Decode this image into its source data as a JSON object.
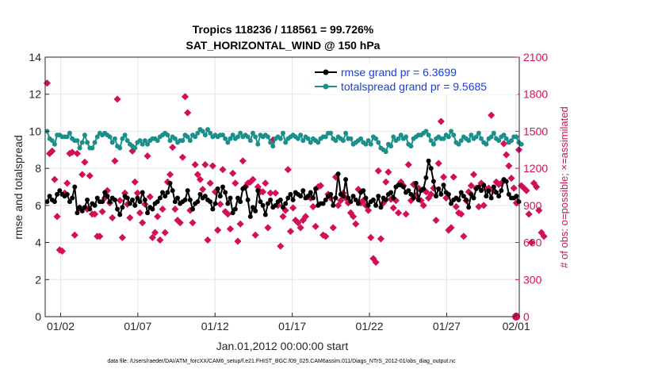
{
  "chart_data": {
    "type": "line",
    "title_line1": "Tropics 118236 / 118561 = 99.726%",
    "title_line2": "SAT_HORIZONTAL_WIND @ 150 hPa",
    "xlabel": "Jan.01,2012 00:00:00 start",
    "ylabel_left": "rmse and totalspread",
    "ylabel_right": "# of obs: o=possible; ×=assimilated",
    "xlim": [
      0.5,
      31.2
    ],
    "ylim_left": [
      0,
      14
    ],
    "ylim_right": [
      0,
      2100
    ],
    "x_ticks": [
      {
        "value": 1.5,
        "label": "01/02"
      },
      {
        "value": 6.5,
        "label": "01/07"
      },
      {
        "value": 11.5,
        "label": "01/12"
      },
      {
        "value": 16.5,
        "label": "01/17"
      },
      {
        "value": 21.5,
        "label": "01/22"
      },
      {
        "value": 26.5,
        "label": "01/27"
      },
      {
        "value": 31.0,
        "label": "02/01"
      }
    ],
    "y_ticks_left": [
      "0",
      "2",
      "4",
      "6",
      "8",
      "10",
      "12",
      "14"
    ],
    "y_ticks_right": [
      "0",
      "300",
      "600",
      "900",
      "1200",
      "1500",
      "1800",
      "2100"
    ],
    "series": [
      {
        "name": "rmse grand pr = 6.3699",
        "color": "#000000",
        "marker": "circle",
        "axis": "left",
        "values": [
          6.2,
          6.5,
          6.3,
          6.2,
          6.6,
          6.8,
          6.6,
          6.5,
          6.6,
          6.2,
          6.4,
          7.0,
          5.6,
          5.9,
          5.7,
          5.9,
          6.3,
          5.8,
          6.1,
          6.0,
          6.4,
          6.2,
          6.2,
          6.7,
          6.5,
          6.2,
          6.4,
          6.3,
          5.8,
          5.5,
          5.9,
          6.5,
          6.4,
          6.1,
          6.3,
          6.0,
          6.4,
          6.2,
          6.7,
          6.3,
          5.6,
          5.9,
          5.8,
          6.1,
          6.2,
          6.4,
          6.7,
          6.5,
          6.7,
          7.2,
          6.8,
          6.2,
          6.4,
          6.1,
          6.2,
          6.3,
          6.8,
          6.3,
          5.8,
          6.1,
          6.2,
          6.6,
          6.4,
          6.5,
          6.3,
          6.2,
          5.8,
          6.1,
          6.9,
          6.5,
          7.0,
          6.7,
          6.1,
          6.4,
          5.6,
          5.8,
          6.4,
          6.2,
          6.9,
          7.0,
          6.3,
          5.4,
          5.9,
          5.7,
          6.8,
          6.2,
          6.0,
          5.5,
          6.1,
          6.3,
          5.9,
          6.0,
          6.2,
          6.3,
          5.9,
          6.1,
          6.4,
          6.6,
          6.3,
          6.7,
          6.6,
          6.5,
          6.8,
          6.4,
          6.5,
          6.7,
          6.4,
          6.9,
          6.0,
          6.1,
          6.1,
          6.3,
          6.5,
          6.6,
          6.0,
          6.4,
          7.7,
          6.6,
          6.5,
          7.4,
          6.4,
          6.2,
          6.5,
          6.3,
          6.1,
          6.7,
          6.8,
          6.4,
          6.0,
          6.2,
          6.3,
          6.0,
          6.5,
          5.9,
          6.4,
          6.3,
          6.6,
          6.7,
          6.4,
          7.0,
          7.1,
          7.1,
          7.0,
          6.7,
          6.8,
          6.6,
          6.4,
          7.2,
          6.3,
          6.8,
          6.9,
          7.5,
          8.4,
          8.0,
          7.3,
          6.5,
          6.9,
          6.6,
          7.1,
          6.7,
          6.6,
          6.1,
          6.3,
          6.4,
          6.3,
          6.7,
          6.5,
          6.3,
          5.9,
          6.6,
          6.4,
          6.9,
          7.0,
          6.8,
          7.1,
          6.5,
          6.8,
          6.4,
          7.0,
          6.7,
          6.5,
          6.8,
          7.4,
          7.3,
          6.6,
          6.4,
          6.4,
          6.5,
          6.2
        ]
      },
      {
        "name": "totalspread grand pr = 9.5685",
        "color": "#1b8f8a",
        "marker": "circle",
        "axis": "left",
        "values": [
          10.0,
          9.6,
          9.5,
          9.3,
          9.8,
          9.8,
          9.7,
          9.7,
          9.7,
          9.9,
          9.6,
          9.5,
          9.5,
          9.1,
          9.4,
          9.8,
          9.4,
          9.1,
          9.1,
          9.4,
          9.7,
          9.9,
          9.8,
          9.9,
          9.8,
          9.7,
          9.4,
          9.6,
          9.2,
          9.1,
          9.6,
          9.8,
          9.5,
          9.3,
          9.2,
          9.1,
          9.4,
          9.5,
          9.3,
          9.5,
          9.3,
          9.5,
          9.6,
          9.6,
          9.5,
          9.7,
          9.8,
          9.9,
          9.8,
          9.5,
          9.7,
          9.6,
          9.4,
          9.5,
          9.5,
          9.8,
          9.7,
          9.5,
          9.8,
          9.7,
          9.9,
          10.1,
          10.0,
          9.8,
          10.1,
          9.9,
          9.7,
          9.8,
          9.7,
          9.8,
          9.8,
          9.6,
          9.4,
          9.6,
          9.8,
          9.6,
          9.7,
          9.9,
          9.7,
          9.8,
          9.7,
          9.5,
          9.9,
          9.7,
          9.3,
          9.8,
          9.7,
          9.8,
          9.7,
          9.4,
          9.2,
          9.6,
          9.7,
          9.6,
          9.9,
          9.4,
          9.6,
          9.7,
          9.8,
          9.7,
          9.6,
          9.8,
          9.5,
          9.7,
          9.6,
          9.4,
          9.6,
          9.5,
          9.4,
          9.6,
          9.7,
          9.7,
          9.9,
          9.9,
          9.6,
          9.5,
          9.7,
          9.6,
          9.5,
          9.9,
          9.6,
          9.6,
          9.3,
          9.4,
          9.5,
          9.6,
          9.4,
          9.3,
          9.5,
          9.3,
          9.7,
          9.6,
          9.4,
          9.1,
          9.0,
          8.9,
          9.3,
          9.2,
          9.7,
          9.5,
          9.6,
          9.8,
          9.6,
          9.7,
          9.3,
          9.2,
          9.6,
          9.7,
          9.8,
          9.8,
          9.9,
          10.0,
          9.8,
          9.5,
          9.3,
          9.6,
          9.7,
          9.6,
          9.6,
          9.8,
          9.7,
          10.0,
          9.8,
          9.4,
          9.3,
          9.5,
          9.7,
          9.6,
          9.5,
          9.8,
          9.6,
          9.7,
          9.9,
          9.6,
          9.4,
          9.3,
          9.6,
          9.7,
          9.9,
          9.6,
          9.5,
          9.7,
          9.8,
          9.6,
          9.4,
          9.5,
          9.7,
          9.7,
          9.4,
          9.3
        ]
      }
    ],
    "possible_obs": [
      1890,
      1320,
      1340,
      1110,
      810,
      540,
      530,
      1000,
      1080,
      1320,
      1330,
      660,
      1320,
      880,
      1150,
      1250,
      870,
      1140,
      830,
      830,
      650,
      650,
      850,
      960,
      1020,
      920,
      800,
      1260,
      1760,
      940,
      640,
      1000,
      910,
      800,
      1340,
      1090,
      1000,
      840,
      760,
      910,
      1300,
      970,
      640,
      680,
      810,
      620,
      870,
      680,
      1090,
      1150,
      1370,
      870,
      780,
      760,
      1290,
      1780,
      1650,
      860,
      760,
      1230,
      1150,
      1110,
      1030,
      1230,
      620,
      1080,
      1220,
      1010,
      700,
      910,
      1190,
      850,
      830,
      710,
      1160,
      1080,
      610,
      750,
      1260,
      1050,
      1080,
      1090,
      1110,
      660,
      1050,
      1010,
      1010,
      1080,
      720,
      1000,
      1430,
      1000,
      900,
      570,
      810,
      860,
      1190,
      690,
      880,
      780,
      760,
      720,
      780,
      810,
      970,
      960,
      890,
      730,
      1050,
      1060,
      660,
      650,
      990,
      960,
      720,
      1130,
      900,
      940,
      1000,
      960,
      920,
      840,
      810,
      750,
      1030,
      920,
      940,
      900,
      860,
      640,
      470,
      440,
      1180,
      630,
      920,
      1090,
      1170,
      950,
      880,
      940,
      840,
      1090,
      1060,
      830,
      1230,
      940,
      1070,
      980,
      1040,
      940,
      900,
      1010,
      960,
      990,
      1040,
      780,
      1240,
      1580,
      1130,
      960,
      700,
      720,
      1130,
      890,
      840,
      830,
      650,
      940,
      1010,
      1060,
      1150,
      1040,
      890,
      1080,
      900,
      1030,
      1040,
      1630,
      1020,
      1090,
      1070,
      1080,
      1400,
      1310,
      1220,
      1120,
      1040,
      920,
      1350,
      1060,
      1040,
      1020,
      830,
      600,
      1080,
      1050,
      860,
      680,
      650
    ]
  }
}
